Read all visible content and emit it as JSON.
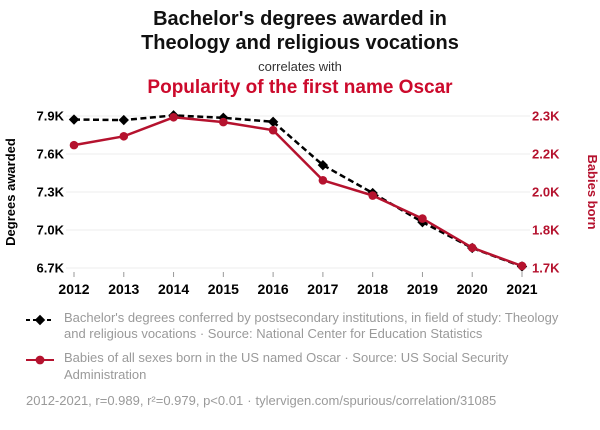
{
  "header": {
    "title_line1": "Bachelor's degrees awarded in",
    "title_line2": "Theology and religious vocations",
    "connector": "correlates with",
    "subtitle": "Popularity of the first name Oscar"
  },
  "colors": {
    "title_red": "#cc0a2c",
    "series_black": "#000000",
    "series_red": "#b5122e",
    "legend_gray": "#9a9a9a",
    "grid_gray": "#ececec",
    "tick_mark_gray": "#999999"
  },
  "chart_data": {
    "type": "line",
    "x": [
      2012,
      2013,
      2014,
      2015,
      2016,
      2017,
      2018,
      2019,
      2020,
      2021
    ],
    "left_axis": {
      "label": "Degrees awarded",
      "color": "#000000",
      "min": 6700,
      "max": 7900,
      "tick_labels": [
        "7.9K",
        "7.6K",
        "7.3K",
        "7.0K",
        "6.7K"
      ]
    },
    "right_axis": {
      "label": "Babies born",
      "color": "#b5122e",
      "min": 1700,
      "max": 2300,
      "tick_labels": [
        "2.3K",
        "2.2K",
        "2.0K",
        "1.8K",
        "1.7K"
      ]
    },
    "series": [
      {
        "name": "Bachelor's degrees in Theology and religious vocations",
        "axis": "left",
        "color": "#000000",
        "dash": "6 3.5",
        "marker": "diamond",
        "values": [
          7872,
          7868,
          7905,
          7886,
          7854,
          7512,
          7292,
          7062,
          6858,
          6712
        ]
      },
      {
        "name": "Babies born in the US named Oscar",
        "axis": "right",
        "color": "#b5122e",
        "dash": "",
        "marker": "circle",
        "values": [
          2185,
          2220,
          2295,
          2276,
          2244,
          2046,
          1986,
          1895,
          1780,
          1708
        ]
      }
    ],
    "grid": true,
    "legend_position": "below"
  },
  "legend": [
    {
      "text": "Bachelor's degrees conferred by postsecondary institutions, in field of study: Theology and religious vocations · Source: National Center for Education Statistics"
    },
    {
      "text": "Babies of all sexes born in the US named Oscar · Source: US Social Security Administration"
    }
  ],
  "footer": {
    "stats": "2012-2021, r=0.989, r²=0.979, p<0.01",
    "separator": "·",
    "link": "tylervigen.com/spurious/correlation/31085"
  }
}
